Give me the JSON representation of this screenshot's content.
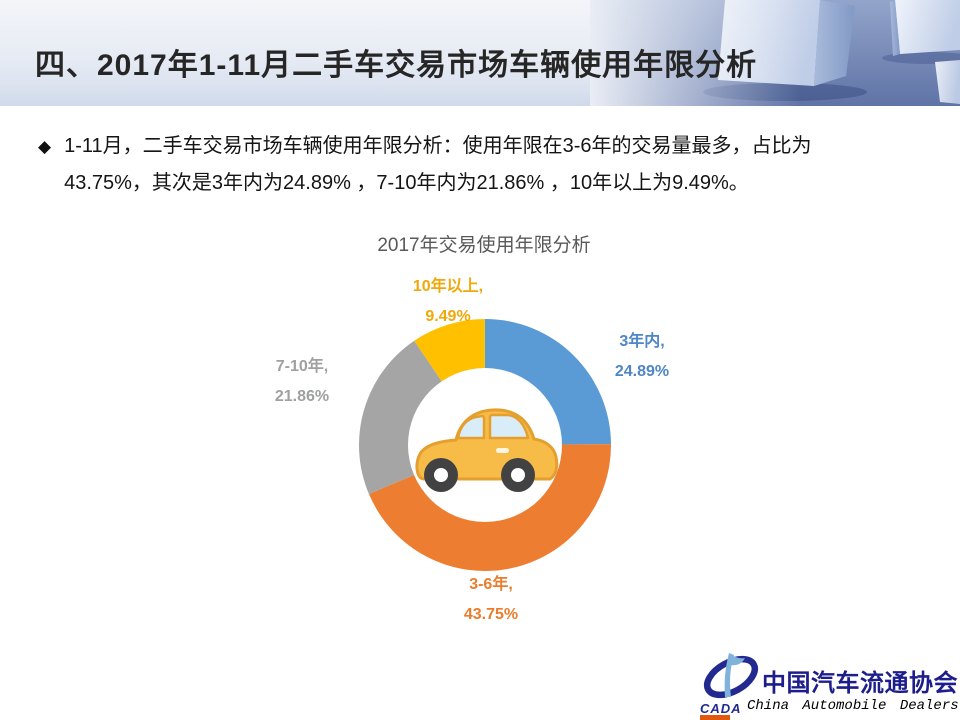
{
  "header": {
    "title": "四、2017年1-11月二手车交易市场车辆使用年限分析"
  },
  "bullet": {
    "marker": "◆",
    "lines": [
      "1-11月，二手车交易市场车辆使用年限分析：使用年限在3-6年的交易量最多，占比为",
      "43.75%，其次是3年内为24.89% ，7-10年内为21.86% ，10年以上为9.49%。"
    ]
  },
  "chart_data": {
    "type": "pie",
    "subtype": "donut",
    "title": "2017年交易使用年限分析",
    "categories": [
      "3年内",
      "3-6年",
      "7-10年",
      "10年以上"
    ],
    "values": [
      24.89,
      43.75,
      21.86,
      9.49
    ],
    "unit": "%",
    "colors": [
      "#5B9BD5",
      "#ED7D31",
      "#A5A5A5",
      "#FFC000"
    ],
    "label_colors": [
      "#4E86C6",
      "#E97D2C",
      "#9FA0A0",
      "#F0A80A"
    ],
    "start_angle_deg": 0,
    "direction": "clockwise",
    "legend": "none",
    "labels_outside": true,
    "center_icon": "car-icon"
  },
  "logo": {
    "acronym": "CADA",
    "name_cn": "中国汽车流通协会",
    "name_en": "China Automobile Dealers"
  }
}
